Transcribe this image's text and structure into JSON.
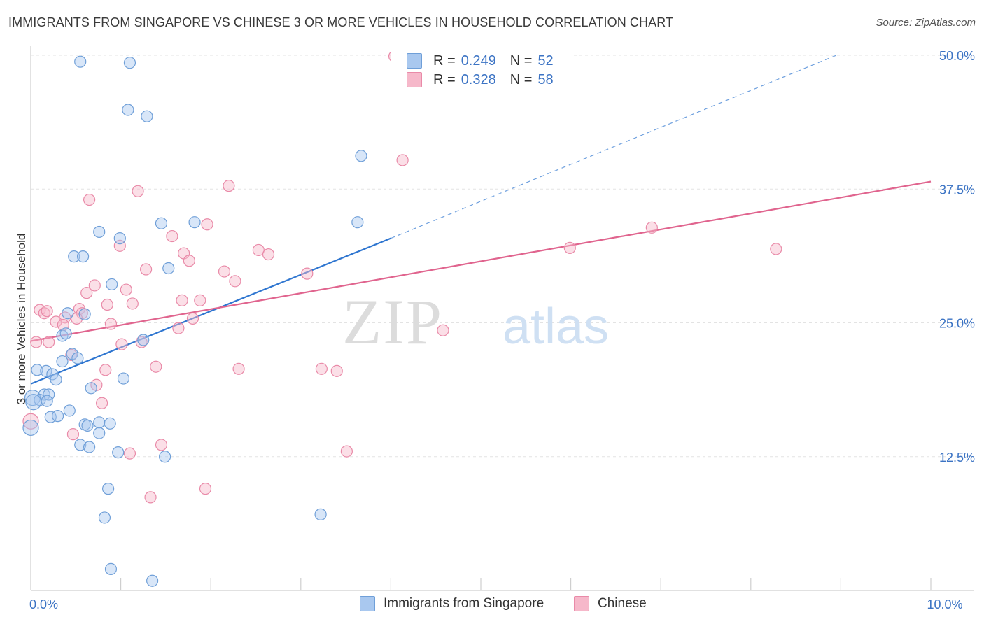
{
  "header": {
    "title": "IMMIGRANTS FROM SINGAPORE VS CHINESE 3 OR MORE VEHICLES IN HOUSEHOLD CORRELATION CHART",
    "source": "Source: ZipAtlas.com"
  },
  "watermark": {
    "zip": "ZIP",
    "atlas": "atlas"
  },
  "legend_top": {
    "rows": [
      {
        "r_label": "R =",
        "r_value": "0.249",
        "n_label": "N =",
        "n_value": "52",
        "color": "#a9c8ef"
      },
      {
        "r_label": "R =",
        "r_value": "0.328",
        "n_label": "N =",
        "n_value": "58",
        "color": "#f6b8ca"
      }
    ]
  },
  "legend_bottom": {
    "series": [
      {
        "name": "Immigrants from Singapore",
        "color": "#a9c8ef"
      },
      {
        "name": "Chinese",
        "color": "#f6b8ca"
      }
    ]
  },
  "chart_data": {
    "type": "scatter",
    "title": "IMMIGRANTS FROM SINGAPORE VS CHINESE 3 OR MORE VEHICLES IN HOUSEHOLD CORRELATION CHART",
    "xlabel": "",
    "ylabel": "3 or more Vehicles in Household",
    "xlim": [
      0,
      10
    ],
    "ylim": [
      0,
      50
    ],
    "x_tick_labels": [
      {
        "value": 0,
        "label": "0.0%"
      },
      {
        "value": 10,
        "label": "10.0%"
      }
    ],
    "y_tick_labels": [
      {
        "value": 12.5,
        "label": "12.5%"
      },
      {
        "value": 25,
        "label": "25.0%"
      },
      {
        "value": 37.5,
        "label": "37.5%"
      },
      {
        "value": 50,
        "label": "50.0%"
      }
    ],
    "grid": true,
    "colors": {
      "singapore_fill": "#a9c8ef",
      "singapore_stroke": "#6f9fd8",
      "singapore_line": "#2f76d0",
      "chinese_fill": "#f6b8ca",
      "chinese_stroke": "#e98aa8",
      "chinese_line": "#e0648e",
      "grid": "#e3e3e3",
      "tick_label": "#3b73c4"
    },
    "series": [
      {
        "name": "Immigrants from Singapore",
        "r": 0.249,
        "n": 52,
        "trend": {
          "x0": 0,
          "y0": 19.3,
          "x1": 4.0,
          "y1": 32.9,
          "dash_x1": 8.95,
          "dash_y1": 50.0
        },
        "points": [
          {
            "x": 0.55,
            "y": 49.4
          },
          {
            "x": 1.1,
            "y": 49.3
          },
          {
            "x": 1.08,
            "y": 44.9
          },
          {
            "x": 1.29,
            "y": 44.3
          },
          {
            "x": 3.67,
            "y": 40.6
          },
          {
            "x": 0.76,
            "y": 33.5
          },
          {
            "x": 0.99,
            "y": 32.9
          },
          {
            "x": 1.45,
            "y": 34.3
          },
          {
            "x": 1.82,
            "y": 34.4
          },
          {
            "x": 3.63,
            "y": 34.4
          },
          {
            "x": 0.48,
            "y": 31.2
          },
          {
            "x": 0.58,
            "y": 31.2
          },
          {
            "x": 1.53,
            "y": 30.1
          },
          {
            "x": 0.9,
            "y": 28.6
          },
          {
            "x": 0.41,
            "y": 25.9
          },
          {
            "x": 0.35,
            "y": 23.8
          },
          {
            "x": 0.39,
            "y": 24.0
          },
          {
            "x": 1.25,
            "y": 23.4
          },
          {
            "x": 0.46,
            "y": 22.1
          },
          {
            "x": 0.52,
            "y": 21.7
          },
          {
            "x": 0.35,
            "y": 21.4
          },
          {
            "x": 0.07,
            "y": 20.6
          },
          {
            "x": 0.17,
            "y": 20.5
          },
          {
            "x": 0.24,
            "y": 20.2
          },
          {
            "x": 0.28,
            "y": 19.7
          },
          {
            "x": 1.03,
            "y": 19.8
          },
          {
            "x": 0.67,
            "y": 18.9
          },
          {
            "x": 0.15,
            "y": 18.3
          },
          {
            "x": 0.2,
            "y": 18.3
          },
          {
            "x": 0.02,
            "y": 18.0
          },
          {
            "x": 0.1,
            "y": 17.8
          },
          {
            "x": 0.43,
            "y": 16.8
          },
          {
            "x": 0.22,
            "y": 16.2
          },
          {
            "x": 0.3,
            "y": 16.3
          },
          {
            "x": 0.6,
            "y": 15.5
          },
          {
            "x": 0.63,
            "y": 15.4
          },
          {
            "x": 0.76,
            "y": 15.7
          },
          {
            "x": 0.88,
            "y": 15.6
          },
          {
            "x": 0.0,
            "y": 15.2
          },
          {
            "x": 0.76,
            "y": 14.7
          },
          {
            "x": 0.55,
            "y": 13.6
          },
          {
            "x": 0.65,
            "y": 13.4
          },
          {
            "x": 0.97,
            "y": 12.9
          },
          {
            "x": 1.49,
            "y": 12.5
          },
          {
            "x": 0.86,
            "y": 9.5
          },
          {
            "x": 0.82,
            "y": 6.8
          },
          {
            "x": 3.22,
            "y": 7.1
          },
          {
            "x": 0.89,
            "y": 2.0
          },
          {
            "x": 1.35,
            "y": 0.9
          },
          {
            "x": 0.6,
            "y": 25.8
          },
          {
            "x": 0.03,
            "y": 17.6
          },
          {
            "x": 0.18,
            "y": 17.7
          }
        ]
      },
      {
        "name": "Chinese",
        "r": 0.328,
        "n": 58,
        "trend": {
          "x0": 0,
          "y0": 23.3,
          "x1": 10.0,
          "y1": 38.2
        },
        "points": [
          {
            "x": 4.04,
            "y": 49.9
          },
          {
            "x": 4.13,
            "y": 40.2
          },
          {
            "x": 0.65,
            "y": 36.5
          },
          {
            "x": 1.19,
            "y": 37.3
          },
          {
            "x": 2.2,
            "y": 37.8
          },
          {
            "x": 1.96,
            "y": 34.2
          },
          {
            "x": 6.9,
            "y": 33.9
          },
          {
            "x": 1.57,
            "y": 33.1
          },
          {
            "x": 0.99,
            "y": 32.2
          },
          {
            "x": 2.53,
            "y": 31.8
          },
          {
            "x": 2.64,
            "y": 31.4
          },
          {
            "x": 1.7,
            "y": 31.5
          },
          {
            "x": 1.76,
            "y": 30.8
          },
          {
            "x": 5.99,
            "y": 32.0
          },
          {
            "x": 8.28,
            "y": 31.9
          },
          {
            "x": 1.28,
            "y": 30.0
          },
          {
            "x": 2.15,
            "y": 29.8
          },
          {
            "x": 3.07,
            "y": 29.6
          },
          {
            "x": 2.27,
            "y": 28.9
          },
          {
            "x": 0.71,
            "y": 28.5
          },
          {
            "x": 0.62,
            "y": 27.8
          },
          {
            "x": 1.06,
            "y": 28.1
          },
          {
            "x": 1.68,
            "y": 27.1
          },
          {
            "x": 1.88,
            "y": 27.1
          },
          {
            "x": 0.85,
            "y": 26.7
          },
          {
            "x": 1.13,
            "y": 26.8
          },
          {
            "x": 0.1,
            "y": 26.2
          },
          {
            "x": 0.15,
            "y": 25.9
          },
          {
            "x": 0.54,
            "y": 26.3
          },
          {
            "x": 0.57,
            "y": 25.9
          },
          {
            "x": 0.51,
            "y": 25.4
          },
          {
            "x": 0.38,
            "y": 25.5
          },
          {
            "x": 1.8,
            "y": 25.4
          },
          {
            "x": 0.28,
            "y": 25.1
          },
          {
            "x": 0.36,
            "y": 24.8
          },
          {
            "x": 0.89,
            "y": 24.9
          },
          {
            "x": 1.64,
            "y": 24.5
          },
          {
            "x": 4.58,
            "y": 24.3
          },
          {
            "x": 0.06,
            "y": 23.2
          },
          {
            "x": 0.2,
            "y": 23.2
          },
          {
            "x": 1.01,
            "y": 23.0
          },
          {
            "x": 1.23,
            "y": 23.2
          },
          {
            "x": 0.45,
            "y": 22.0
          },
          {
            "x": 1.39,
            "y": 20.9
          },
          {
            "x": 0.83,
            "y": 20.6
          },
          {
            "x": 2.31,
            "y": 20.7
          },
          {
            "x": 3.23,
            "y": 20.7
          },
          {
            "x": 3.4,
            "y": 20.5
          },
          {
            "x": 0.73,
            "y": 19.2
          },
          {
            "x": 0.79,
            "y": 17.5
          },
          {
            "x": 0.0,
            "y": 15.8
          },
          {
            "x": 0.47,
            "y": 14.6
          },
          {
            "x": 1.45,
            "y": 13.6
          },
          {
            "x": 1.1,
            "y": 12.8
          },
          {
            "x": 3.51,
            "y": 13.0
          },
          {
            "x": 1.33,
            "y": 8.7
          },
          {
            "x": 1.94,
            "y": 9.5
          },
          {
            "x": 0.18,
            "y": 26.1
          }
        ]
      }
    ]
  }
}
